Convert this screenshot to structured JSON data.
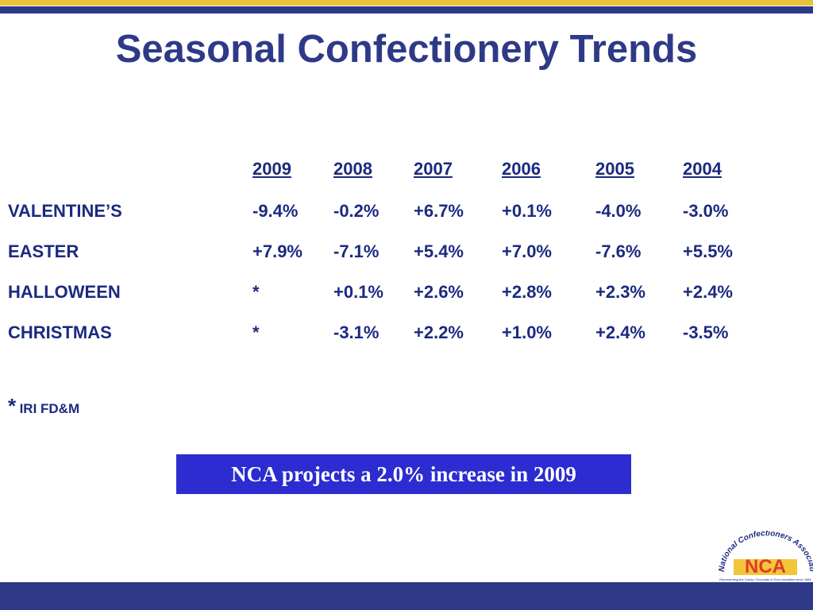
{
  "title": "Seasonal Confectionery Trends",
  "table": {
    "header": [
      "2009",
      "2008",
      "2007",
      "2006",
      "2005",
      "2004"
    ],
    "rows": [
      [
        "VALENTINE’S",
        "-9.4%",
        "-0.2%",
        "+6.7%",
        "+0.1%",
        "-4.0%",
        "-3.0%"
      ],
      [
        "EASTER",
        "+7.9%",
        "-7.1%",
        "+5.4%",
        "+7.0%",
        "-7.6%",
        "+5.5%"
      ],
      [
        "HALLOWEEN",
        "*",
        "+0.1%",
        "+2.6%",
        "+2.8%",
        "+2.3%",
        "+2.4%"
      ],
      [
        "CHRISTMAS",
        "*",
        "-3.1%",
        "+2.2%",
        "+1.0%",
        "+2.4%",
        "-3.5%"
      ]
    ]
  },
  "footnote": {
    "mark": "*",
    "text": "IRI FD&M"
  },
  "callout": "NCA projects a 2.0% increase in 2009",
  "logo": {
    "arc": "National Confectioners Association",
    "name": "NCA",
    "tagline": "Representing the Candy, Chocolate & Gum Industries since 1884"
  }
}
